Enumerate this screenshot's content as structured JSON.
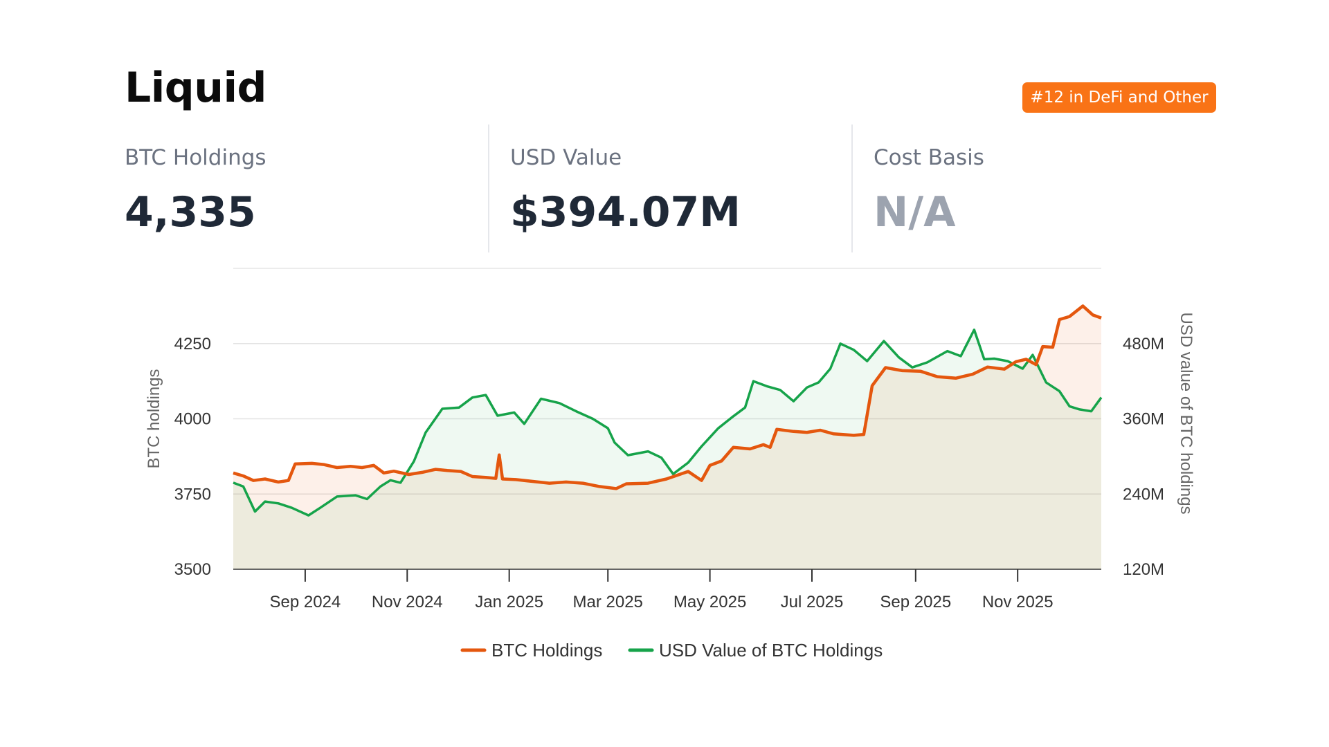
{
  "header": {
    "title": "Liquid",
    "badge": "#12 in DeFi and Other"
  },
  "stats": [
    {
      "label": "BTC Holdings",
      "value": "4,335"
    },
    {
      "label": "USD Value",
      "value": "$394.07M"
    },
    {
      "label": "Cost Basis",
      "value": "N/A"
    }
  ],
  "colors": {
    "btc_line": "#e4570e",
    "usd_line": "#16a34a",
    "badge": "#f97316"
  },
  "chart_data": {
    "type": "line",
    "x_tick_labels": [
      "Sep 2024",
      "Nov 2024",
      "Jan 2025",
      "Mar 2025",
      "May 2025",
      "Jul 2025",
      "Sep 2025",
      "Nov 2025"
    ],
    "y_left": {
      "label": "BTC holdings",
      "ticks": [
        3500,
        3750,
        4000,
        4250
      ],
      "range": [
        3500,
        4500
      ]
    },
    "y_right": {
      "label": "USD value of BTC holdings",
      "ticks": [
        "120M",
        "240M",
        "360M",
        "480M"
      ],
      "tick_values": [
        120,
        240,
        360,
        480
      ],
      "range": [
        120,
        600
      ],
      "unit": "M USD"
    },
    "series": [
      {
        "name": "BTC Holdings",
        "axis": "left",
        "points": [
          [
            "2024-07-20",
            3820
          ],
          [
            "2024-07-26",
            3810
          ],
          [
            "2024-08-01",
            3795
          ],
          [
            "2024-08-08",
            3800
          ],
          [
            "2024-08-16",
            3790
          ],
          [
            "2024-08-22",
            3795
          ],
          [
            "2024-08-26",
            3850
          ],
          [
            "2024-09-05",
            3852
          ],
          [
            "2024-09-12",
            3848
          ],
          [
            "2024-09-20",
            3838
          ],
          [
            "2024-09-28",
            3842
          ],
          [
            "2024-10-05",
            3838
          ],
          [
            "2024-10-12",
            3845
          ],
          [
            "2024-10-18",
            3820
          ],
          [
            "2024-10-24",
            3826
          ],
          [
            "2024-11-02",
            3815
          ],
          [
            "2024-11-10",
            3822
          ],
          [
            "2024-11-18",
            3832
          ],
          [
            "2024-11-25",
            3828
          ],
          [
            "2024-12-03",
            3825
          ],
          [
            "2024-12-10",
            3808
          ],
          [
            "2024-12-18",
            3805
          ],
          [
            "2024-12-24",
            3802
          ],
          [
            "2024-12-26",
            3880
          ],
          [
            "2024-12-28",
            3800
          ],
          [
            "2025-01-05",
            3798
          ],
          [
            "2025-01-15",
            3792
          ],
          [
            "2025-01-25",
            3786
          ],
          [
            "2025-02-04",
            3790
          ],
          [
            "2025-02-14",
            3786
          ],
          [
            "2025-02-24",
            3775
          ],
          [
            "2025-03-06",
            3768
          ],
          [
            "2025-03-12",
            3784
          ],
          [
            "2025-03-25",
            3786
          ],
          [
            "2025-04-05",
            3800
          ],
          [
            "2025-04-18",
            3825
          ],
          [
            "2025-04-26",
            3795
          ],
          [
            "2025-05-01",
            3845
          ],
          [
            "2025-05-08",
            3860
          ],
          [
            "2025-05-15",
            3905
          ],
          [
            "2025-05-25",
            3900
          ],
          [
            "2025-06-02",
            3914
          ],
          [
            "2025-06-06",
            3905
          ],
          [
            "2025-06-10",
            3965
          ],
          [
            "2025-06-20",
            3958
          ],
          [
            "2025-06-28",
            3955
          ],
          [
            "2025-07-06",
            3962
          ],
          [
            "2025-07-14",
            3950
          ],
          [
            "2025-07-26",
            3945
          ],
          [
            "2025-08-01",
            3948
          ],
          [
            "2025-08-06",
            4110
          ],
          [
            "2025-08-14",
            4170
          ],
          [
            "2025-08-24",
            4160
          ],
          [
            "2025-09-04",
            4158
          ],
          [
            "2025-09-14",
            4140
          ],
          [
            "2025-09-25",
            4135
          ],
          [
            "2025-10-05",
            4148
          ],
          [
            "2025-10-14",
            4172
          ],
          [
            "2025-10-24",
            4165
          ],
          [
            "2025-10-31",
            4190
          ],
          [
            "2025-11-06",
            4198
          ],
          [
            "2025-11-12",
            4180
          ],
          [
            "2025-11-16",
            4240
          ],
          [
            "2025-11-22",
            4238
          ],
          [
            "2025-11-26",
            4330
          ],
          [
            "2025-12-02",
            4340
          ],
          [
            "2025-12-10",
            4375
          ],
          [
            "2025-12-16",
            4345
          ],
          [
            "2025-12-21",
            4335
          ]
        ]
      },
      {
        "name": "USD Value of BTC Holdings",
        "axis": "right",
        "points": [
          [
            "2024-07-20",
            258
          ],
          [
            "2024-07-26",
            252
          ],
          [
            "2024-08-02",
            212
          ],
          [
            "2024-08-08",
            228
          ],
          [
            "2024-08-16",
            225
          ],
          [
            "2024-08-24",
            218
          ],
          [
            "2024-09-03",
            206
          ],
          [
            "2024-09-10",
            218
          ],
          [
            "2024-09-20",
            236
          ],
          [
            "2024-10-01",
            238
          ],
          [
            "2024-10-08",
            232
          ],
          [
            "2024-10-16",
            252
          ],
          [
            "2024-10-22",
            262
          ],
          [
            "2024-10-28",
            258
          ],
          [
            "2024-11-05",
            292
          ],
          [
            "2024-11-12",
            338
          ],
          [
            "2024-11-22",
            376
          ],
          [
            "2024-12-02",
            378
          ],
          [
            "2024-12-10",
            394
          ],
          [
            "2024-12-18",
            398
          ],
          [
            "2024-12-25",
            365
          ],
          [
            "2025-01-04",
            370
          ],
          [
            "2025-01-10",
            352
          ],
          [
            "2025-01-20",
            392
          ],
          [
            "2025-01-31",
            385
          ],
          [
            "2025-02-10",
            372
          ],
          [
            "2025-02-20",
            360
          ],
          [
            "2025-03-01",
            345
          ],
          [
            "2025-03-05",
            322
          ],
          [
            "2025-03-13",
            302
          ],
          [
            "2025-03-25",
            308
          ],
          [
            "2025-04-02",
            298
          ],
          [
            "2025-04-09",
            272
          ],
          [
            "2025-04-18",
            290
          ],
          [
            "2025-04-26",
            316
          ],
          [
            "2025-05-06",
            345
          ],
          [
            "2025-05-14",
            362
          ],
          [
            "2025-05-22",
            378
          ],
          [
            "2025-05-27",
            420
          ],
          [
            "2025-06-04",
            412
          ],
          [
            "2025-06-12",
            406
          ],
          [
            "2025-06-20",
            388
          ],
          [
            "2025-06-28",
            410
          ],
          [
            "2025-07-05",
            418
          ],
          [
            "2025-07-12",
            440
          ],
          [
            "2025-07-18",
            480
          ],
          [
            "2025-07-26",
            470
          ],
          [
            "2025-08-03",
            452
          ],
          [
            "2025-08-13",
            484
          ],
          [
            "2025-08-22",
            458
          ],
          [
            "2025-08-30",
            442
          ],
          [
            "2025-09-08",
            450
          ],
          [
            "2025-09-20",
            468
          ],
          [
            "2025-09-28",
            460
          ],
          [
            "2025-10-06",
            502
          ],
          [
            "2025-10-12",
            455
          ],
          [
            "2025-10-18",
            456
          ],
          [
            "2025-10-26",
            452
          ],
          [
            "2025-11-04",
            440
          ],
          [
            "2025-11-10",
            462
          ],
          [
            "2025-11-18",
            418
          ],
          [
            "2025-11-26",
            404
          ],
          [
            "2025-12-02",
            380
          ],
          [
            "2025-12-08",
            375
          ],
          [
            "2025-12-15",
            372
          ],
          [
            "2025-12-21",
            394
          ]
        ]
      }
    ],
    "x_range": [
      "2024-07-20",
      "2025-12-21"
    ],
    "legend_position": "bottom-center",
    "grid": true
  }
}
